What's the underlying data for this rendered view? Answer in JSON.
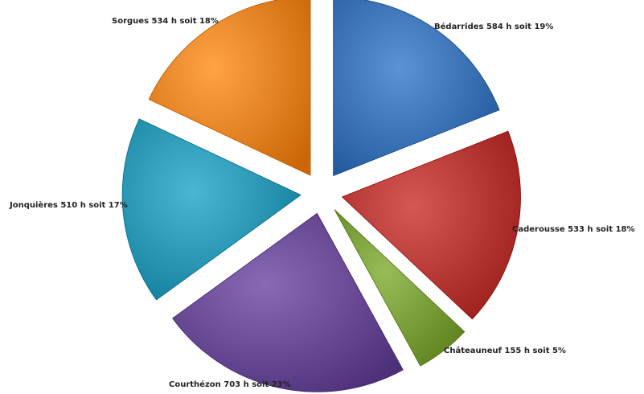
{
  "chart_data": {
    "type": "pie",
    "slices": [
      {
        "label": "Bédarrides 584 h soit 19%",
        "value": 19,
        "color": "#3d74b8"
      },
      {
        "label": "Caderousse 533 h soit 18%",
        "value": 18,
        "color": "#b83a37"
      },
      {
        "label": "Châteauneuf 155 h soit 5%",
        "value": 5,
        "color": "#7a9e39"
      },
      {
        "label": "Courthézon 703 h soit 23%",
        "value": 23,
        "color": "#6a4c96"
      },
      {
        "label": "Jonquières 510 h soit 17%",
        "value": 17,
        "color": "#2b98b5"
      },
      {
        "label": "Sorgues 534 h soit 18%",
        "value": 18,
        "color": "#e98526"
      }
    ],
    "legend": "none"
  }
}
